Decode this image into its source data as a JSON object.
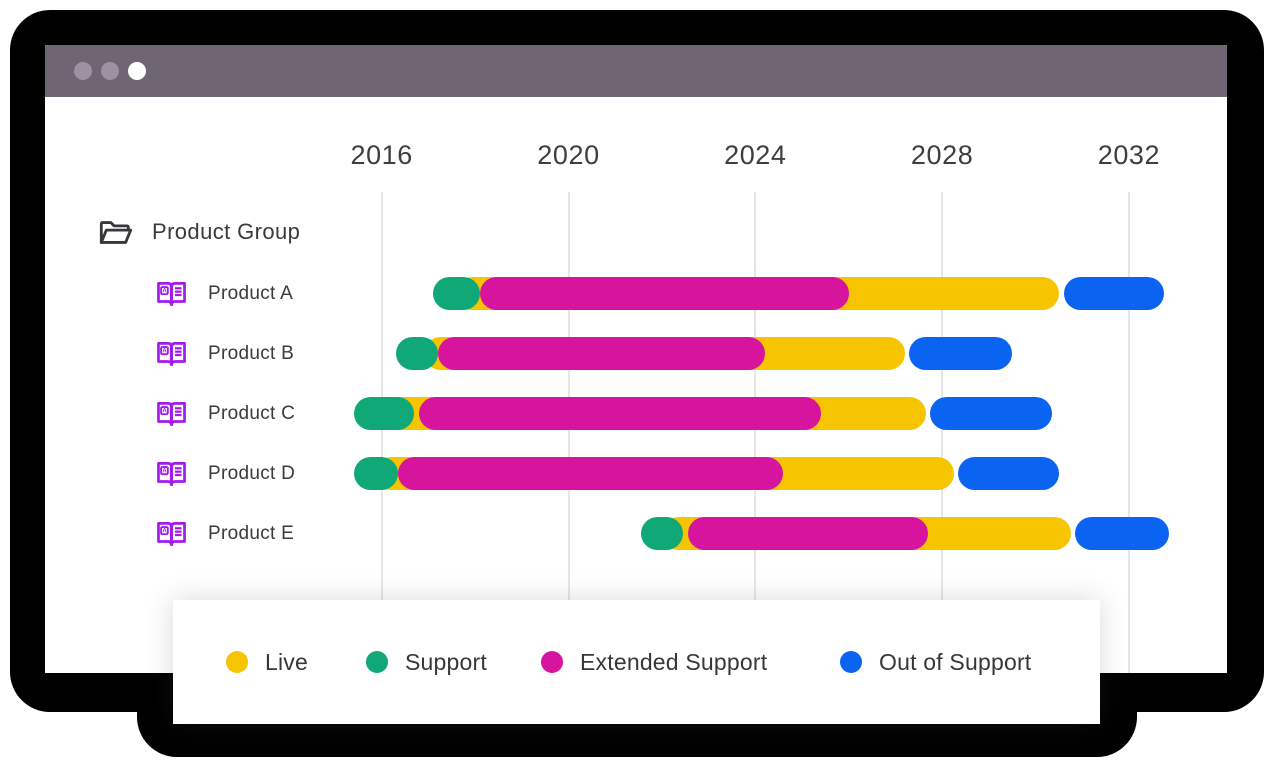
{
  "window": {
    "titlebar_color": "#6F6573",
    "dot_color": "#9C92A1",
    "active_dot_color": "#FFFFFF"
  },
  "icon_colors": {
    "book": "#A11BEB",
    "folder": "#3A373C"
  },
  "chart_data": {
    "type": "gantt",
    "title": "",
    "group_label": "Product Group",
    "x_axis": {
      "tick_years": [
        2016,
        2020,
        2024,
        2028,
        2032
      ],
      "range": [
        2015,
        2033.5
      ],
      "gridlines": true
    },
    "series_order": [
      "live",
      "out_of_support",
      "support",
      "extended_support"
    ],
    "rows": [
      {
        "label": "Product A",
        "segments": {
          "live": [
            2017.6,
            2030.5
          ],
          "support": [
            2017.1,
            2018.1
          ],
          "extended_support": [
            2018.1,
            2026.0
          ],
          "out_of_support": [
            2030.6,
            2032.75
          ]
        }
      },
      {
        "label": "Product B",
        "segments": {
          "live": [
            2016.9,
            2027.2
          ],
          "support": [
            2016.3,
            2017.2
          ],
          "extended_support": [
            2017.2,
            2024.2
          ],
          "out_of_support": [
            2027.3,
            2029.5
          ]
        }
      },
      {
        "label": "Product C",
        "segments": {
          "live": [
            2015.9,
            2027.65
          ],
          "support": [
            2015.4,
            2016.7
          ],
          "extended_support": [
            2016.8,
            2025.4
          ],
          "out_of_support": [
            2027.75,
            2030.35
          ]
        }
      },
      {
        "label": "Product D",
        "segments": {
          "live": [
            2015.85,
            2028.25
          ],
          "support": [
            2015.4,
            2016.35
          ],
          "extended_support": [
            2016.35,
            2024.6
          ],
          "out_of_support": [
            2028.35,
            2030.5
          ]
        }
      },
      {
        "label": "Product E",
        "segments": {
          "live": [
            2022.0,
            2030.75
          ],
          "support": [
            2021.55,
            2022.45
          ],
          "extended_support": [
            2022.55,
            2027.7
          ],
          "out_of_support": [
            2030.85,
            2032.85
          ]
        }
      }
    ],
    "colors": {
      "live": "#F7C500",
      "support": "#0FA876",
      "extended_support": "#D6149E",
      "out_of_support": "#0B63F2"
    },
    "legend": [
      {
        "key": "live",
        "label": "Live"
      },
      {
        "key": "support",
        "label": "Support"
      },
      {
        "key": "extended_support",
        "label": "Extended Support"
      },
      {
        "key": "out_of_support",
        "label": "Out of Support"
      }
    ],
    "legend_position": "bottom"
  }
}
